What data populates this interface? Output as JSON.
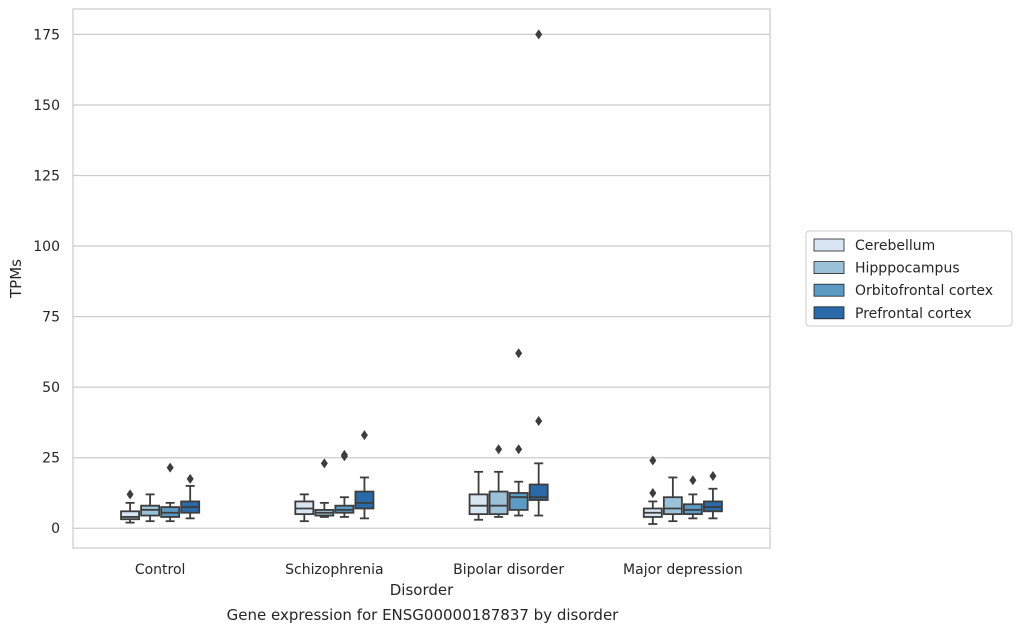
{
  "caption": "Gene expression for ENSG00000187837 by disorder",
  "chart_data": {
    "type": "box",
    "xlabel": "Disorder",
    "ylabel": "TPMs",
    "ylim": [
      -7,
      184
    ],
    "yticks": [
      0,
      25,
      50,
      75,
      100,
      125,
      150,
      175
    ],
    "grid": "horizontal",
    "legend_position": "right",
    "categories": [
      "Control",
      "Schizophrenia",
      "Bipolar disorder",
      "Major depression"
    ],
    "series": [
      {
        "name": "Cerebellum",
        "color": "#d8e6f3",
        "boxes": [
          {
            "whislo": 2,
            "q1": 3.2,
            "med": 4,
            "q3": 6,
            "whishi": 9,
            "fliers": [
              12
            ]
          },
          {
            "whislo": 2.5,
            "q1": 5,
            "med": 7,
            "q3": 9.5,
            "whishi": 12,
            "fliers": []
          },
          {
            "whislo": 3,
            "q1": 5,
            "med": 8,
            "q3": 12,
            "whishi": 20,
            "fliers": []
          },
          {
            "whislo": 1.5,
            "q1": 4,
            "med": 5.5,
            "q3": 7,
            "whishi": 9.5,
            "fliers": [
              12.5,
              24
            ]
          }
        ]
      },
      {
        "name": "Hipppocampus",
        "color": "#9cc2d9",
        "boxes": [
          {
            "whislo": 2.5,
            "q1": 4.5,
            "med": 6.5,
            "q3": 8,
            "whishi": 12,
            "fliers": []
          },
          {
            "whislo": 4,
            "q1": 4.5,
            "med": 5.5,
            "q3": 6.5,
            "whishi": 9,
            "fliers": [
              23
            ]
          },
          {
            "whislo": 4,
            "q1": 5,
            "med": 8,
            "q3": 13,
            "whishi": 20,
            "fliers": [
              28
            ]
          },
          {
            "whislo": 2.5,
            "q1": 5,
            "med": 7,
            "q3": 11,
            "whishi": 18,
            "fliers": []
          }
        ]
      },
      {
        "name": "Orbitofrontal cortex",
        "color": "#5a9ac5",
        "boxes": [
          {
            "whislo": 2.5,
            "q1": 4,
            "med": 5.5,
            "q3": 7.5,
            "whishi": 9,
            "fliers": [
              21.5
            ]
          },
          {
            "whislo": 4,
            "q1": 5.5,
            "med": 6.5,
            "q3": 8,
            "whishi": 11,
            "fliers": [
              25.5,
              26
            ]
          },
          {
            "whislo": 4.5,
            "q1": 6.5,
            "med": 11,
            "q3": 12.5,
            "whishi": 16.5,
            "fliers": [
              28,
              62
            ]
          },
          {
            "whislo": 3.5,
            "q1": 5,
            "med": 6.5,
            "q3": 8.5,
            "whishi": 12,
            "fliers": [
              17
            ]
          }
        ]
      },
      {
        "name": "Prefrontal cortex",
        "color": "#2b6aa8",
        "boxes": [
          {
            "whislo": 3.5,
            "q1": 5.5,
            "med": 7.5,
            "q3": 9.5,
            "whishi": 15,
            "fliers": [
              17.5
            ]
          },
          {
            "whislo": 3.5,
            "q1": 7,
            "med": 9,
            "q3": 13,
            "whishi": 18,
            "fliers": [
              33
            ]
          },
          {
            "whislo": 4.5,
            "q1": 10,
            "med": 11,
            "q3": 15.5,
            "whishi": 23,
            "fliers": [
              38,
              175
            ]
          },
          {
            "whislo": 3.5,
            "q1": 6,
            "med": 7.5,
            "q3": 9.5,
            "whishi": 14,
            "fliers": [
              18.5
            ]
          }
        ]
      }
    ]
  }
}
